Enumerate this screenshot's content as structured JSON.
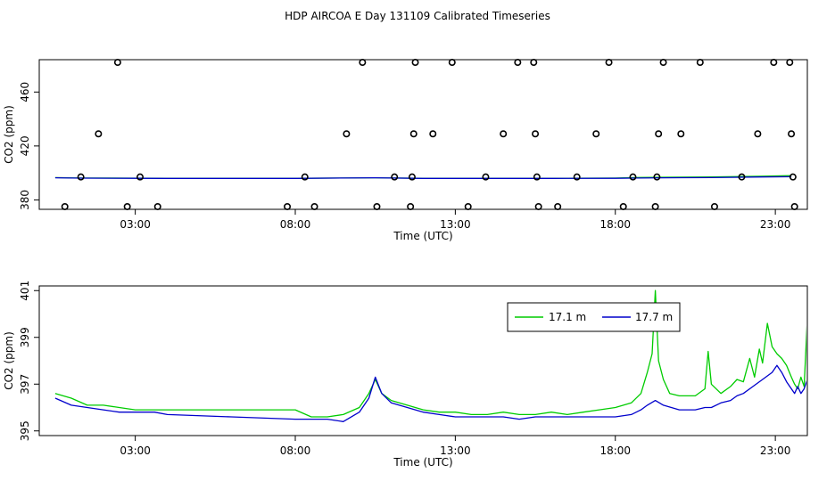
{
  "chart_data": [
    {
      "type": "scatter",
      "title": "HDP AIRCOA E  Day 131109  Calibrated Timeseries",
      "xlabel": "Time (UTC)",
      "ylabel": "CO2 (ppm)",
      "xlim": [
        0,
        24
      ],
      "ylim": [
        373,
        484
      ],
      "x_ticks": [
        {
          "value": 3,
          "label": "03:00"
        },
        {
          "value": 8,
          "label": "08:00"
        },
        {
          "value": 13,
          "label": "13:00"
        },
        {
          "value": 18,
          "label": "18:00"
        },
        {
          "value": 23,
          "label": "23:00"
        }
      ],
      "y_ticks": [
        {
          "value": 380,
          "label": "380"
        },
        {
          "value": 420,
          "label": "420"
        },
        {
          "value": 460,
          "label": "460"
        }
      ],
      "markers": [
        [
          0.8,
          375
        ],
        [
          1.3,
          397
        ],
        [
          1.85,
          429
        ],
        [
          2.45,
          482
        ],
        [
          2.75,
          375
        ],
        [
          3.15,
          397
        ],
        [
          3.7,
          375
        ],
        [
          7.75,
          375
        ],
        [
          8.3,
          397
        ],
        [
          8.6,
          375
        ],
        [
          9.6,
          429
        ],
        [
          10.1,
          482
        ],
        [
          10.55,
          375
        ],
        [
          11.1,
          397
        ],
        [
          11.6,
          375
        ],
        [
          11.65,
          397
        ],
        [
          11.7,
          429
        ],
        [
          11.75,
          482
        ],
        [
          12.3,
          429
        ],
        [
          12.9,
          482
        ],
        [
          13.4,
          375
        ],
        [
          13.95,
          397
        ],
        [
          14.5,
          429
        ],
        [
          14.95,
          482
        ],
        [
          15.45,
          482
        ],
        [
          15.5,
          429
        ],
        [
          15.55,
          397
        ],
        [
          15.6,
          375
        ],
        [
          16.2,
          375
        ],
        [
          16.8,
          397
        ],
        [
          17.4,
          429
        ],
        [
          17.8,
          482
        ],
        [
          18.25,
          375
        ],
        [
          18.55,
          397
        ],
        [
          19.25,
          375
        ],
        [
          19.3,
          397
        ],
        [
          19.35,
          429
        ],
        [
          19.5,
          482
        ],
        [
          20.05,
          429
        ],
        [
          20.65,
          482
        ],
        [
          21.1,
          375
        ],
        [
          21.95,
          397
        ],
        [
          22.45,
          429
        ],
        [
          22.95,
          482
        ],
        [
          23.45,
          482
        ],
        [
          23.5,
          429
        ],
        [
          23.55,
          397
        ],
        [
          23.6,
          375
        ]
      ],
      "series": [
        {
          "name": "",
          "color": "#00cc00",
          "values": [
            [
              0.5,
              396.5
            ],
            [
              1.3,
              396.2
            ],
            [
              3,
              396.1
            ],
            [
              4,
              396.0
            ],
            [
              8,
              396.0
            ],
            [
              10.5,
              396.4
            ],
            [
              12,
              396.0
            ],
            [
              14,
              396.0
            ],
            [
              16,
              396.0
            ],
            [
              18,
              396.2
            ],
            [
              18.7,
              396.6
            ],
            [
              19.5,
              396.8
            ],
            [
              21,
              397.0
            ],
            [
              22.5,
              397.5
            ],
            [
              23.5,
              398.0
            ]
          ]
        },
        {
          "name": "",
          "color": "#0000cc",
          "values": [
            [
              0.5,
              396.4
            ],
            [
              1.3,
              396.1
            ],
            [
              3,
              396.0
            ],
            [
              4,
              395.9
            ],
            [
              8,
              395.9
            ],
            [
              10.5,
              396.4
            ],
            [
              12,
              395.9
            ],
            [
              14,
              395.9
            ],
            [
              16,
              395.9
            ],
            [
              18,
              396.0
            ],
            [
              18.7,
              396.2
            ],
            [
              19.5,
              396.4
            ],
            [
              21,
              396.5
            ],
            [
              22.5,
              397.0
            ],
            [
              23.5,
              397.2
            ]
          ]
        }
      ]
    },
    {
      "type": "line",
      "xlabel": "Time (UTC)",
      "ylabel": "CO2 (ppm)",
      "xlim": [
        0,
        24
      ],
      "ylim": [
        394.8,
        401.2
      ],
      "x_ticks": [
        {
          "value": 3,
          "label": "03:00"
        },
        {
          "value": 8,
          "label": "08:00"
        },
        {
          "value": 13,
          "label": "13:00"
        },
        {
          "value": 18,
          "label": "18:00"
        },
        {
          "value": 23,
          "label": "23:00"
        }
      ],
      "y_ticks": [
        {
          "value": 395,
          "label": "395"
        },
        {
          "value": 397,
          "label": "397"
        },
        {
          "value": 399,
          "label": "399"
        },
        {
          "value": 401,
          "label": "401"
        }
      ],
      "legend_position": "top-right",
      "series": [
        {
          "name": "17.1 m",
          "color": "#00cc00",
          "values": [
            [
              0.5,
              396.6
            ],
            [
              1,
              396.4
            ],
            [
              1.5,
              396.1
            ],
            [
              2,
              396.1
            ],
            [
              2.5,
              396.0
            ],
            [
              3,
              395.9
            ],
            [
              3.6,
              395.9
            ],
            [
              4,
              395.9
            ],
            [
              6,
              395.9
            ],
            [
              8,
              395.9
            ],
            [
              8.5,
              395.6
            ],
            [
              9,
              395.6
            ],
            [
              9.5,
              395.7
            ],
            [
              10,
              396.0
            ],
            [
              10.3,
              396.6
            ],
            [
              10.5,
              397.2
            ],
            [
              10.7,
              396.6
            ],
            [
              11,
              396.3
            ],
            [
              11.5,
              396.1
            ],
            [
              12,
              395.9
            ],
            [
              12.5,
              395.8
            ],
            [
              13,
              395.8
            ],
            [
              13.5,
              395.7
            ],
            [
              14,
              395.7
            ],
            [
              14.5,
              395.8
            ],
            [
              15,
              395.7
            ],
            [
              15.5,
              395.7
            ],
            [
              16,
              395.8
            ],
            [
              16.5,
              395.7
            ],
            [
              17,
              395.8
            ],
            [
              17.5,
              395.9
            ],
            [
              18,
              396.0
            ],
            [
              18.5,
              396.2
            ],
            [
              18.8,
              396.6
            ],
            [
              19.0,
              397.5
            ],
            [
              19.15,
              398.3
            ],
            [
              19.25,
              401.0
            ],
            [
              19.35,
              398.0
            ],
            [
              19.5,
              397.2
            ],
            [
              19.7,
              396.6
            ],
            [
              20,
              396.5
            ],
            [
              20.5,
              396.5
            ],
            [
              20.8,
              396.8
            ],
            [
              20.9,
              398.4
            ],
            [
              21,
              397.0
            ],
            [
              21.3,
              396.6
            ],
            [
              21.6,
              396.9
            ],
            [
              21.8,
              397.2
            ],
            [
              22,
              397.1
            ],
            [
              22.2,
              398.1
            ],
            [
              22.35,
              397.3
            ],
            [
              22.5,
              398.5
            ],
            [
              22.6,
              397.9
            ],
            [
              22.75,
              399.6
            ],
            [
              22.9,
              398.6
            ],
            [
              23.05,
              398.3
            ],
            [
              23.2,
              398.1
            ],
            [
              23.35,
              397.8
            ],
            [
              23.5,
              397.3
            ],
            [
              23.6,
              397.0
            ],
            [
              23.7,
              396.8
            ],
            [
              23.8,
              397.3
            ],
            [
              23.9,
              396.9
            ],
            [
              24,
              399.8
            ]
          ]
        },
        {
          "name": "17.7 m",
          "color": "#0000cc",
          "values": [
            [
              0.5,
              396.4
            ],
            [
              1,
              396.1
            ],
            [
              1.5,
              396.0
            ],
            [
              2,
              395.9
            ],
            [
              2.5,
              395.8
            ],
            [
              3,
              395.8
            ],
            [
              3.6,
              395.8
            ],
            [
              4,
              395.7
            ],
            [
              6,
              395.6
            ],
            [
              8,
              395.5
            ],
            [
              8.5,
              395.5
            ],
            [
              9,
              395.5
            ],
            [
              9.5,
              395.4
            ],
            [
              10,
              395.8
            ],
            [
              10.3,
              396.4
            ],
            [
              10.5,
              397.3
            ],
            [
              10.7,
              396.6
            ],
            [
              11,
              396.2
            ],
            [
              11.5,
              396.0
            ],
            [
              12,
              395.8
            ],
            [
              12.5,
              395.7
            ],
            [
              13,
              395.6
            ],
            [
              13.5,
              395.6
            ],
            [
              14,
              395.6
            ],
            [
              14.5,
              395.6
            ],
            [
              15,
              395.5
            ],
            [
              15.5,
              395.6
            ],
            [
              16,
              395.6
            ],
            [
              16.5,
              395.6
            ],
            [
              17,
              395.6
            ],
            [
              17.5,
              395.6
            ],
            [
              18,
              395.6
            ],
            [
              18.5,
              395.7
            ],
            [
              18.8,
              395.9
            ],
            [
              19.0,
              396.1
            ],
            [
              19.25,
              396.3
            ],
            [
              19.5,
              396.1
            ],
            [
              20,
              395.9
            ],
            [
              20.5,
              395.9
            ],
            [
              20.8,
              396.0
            ],
            [
              21,
              396.0
            ],
            [
              21.3,
              396.2
            ],
            [
              21.6,
              396.3
            ],
            [
              21.8,
              396.5
            ],
            [
              22,
              396.6
            ],
            [
              22.3,
              396.9
            ],
            [
              22.6,
              397.2
            ],
            [
              22.9,
              397.5
            ],
            [
              23.05,
              397.8
            ],
            [
              23.2,
              397.5
            ],
            [
              23.35,
              397.1
            ],
            [
              23.5,
              396.8
            ],
            [
              23.6,
              396.6
            ],
            [
              23.7,
              396.9
            ],
            [
              23.8,
              396.6
            ],
            [
              23.9,
              396.8
            ],
            [
              24,
              397.2
            ]
          ]
        }
      ]
    }
  ]
}
